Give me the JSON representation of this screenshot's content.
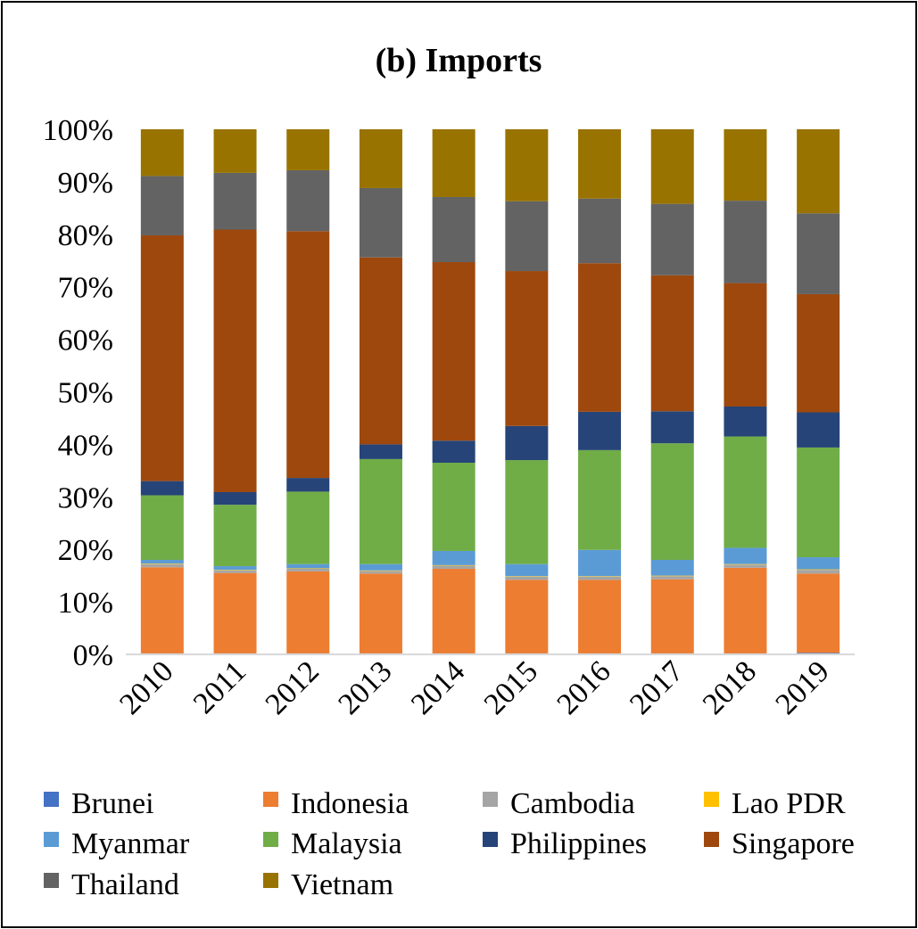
{
  "chart_data": {
    "type": "bar",
    "stacked": true,
    "normalized_percent": true,
    "title": "(b) Imports",
    "categories": [
      "2010",
      "2011",
      "2012",
      "2013",
      "2014",
      "2015",
      "2016",
      "2017",
      "2018",
      "2019"
    ],
    "y_ticks": [
      "0%",
      "10%",
      "20%",
      "30%",
      "40%",
      "50%",
      "60%",
      "70%",
      "80%",
      "90%",
      "100%"
    ],
    "ylim": [
      0,
      100
    ],
    "grid": false,
    "legend_position": "bottom",
    "series": [
      {
        "name": "Brunei",
        "color": "#4472C4",
        "values": [
          0.2,
          0.2,
          0.2,
          0.2,
          0.2,
          0.2,
          0.2,
          0.2,
          0.2,
          0.3
        ]
      },
      {
        "name": "Indonesia",
        "color": "#ED7D31",
        "values": [
          16.4,
          15.3,
          15.6,
          15.2,
          16.1,
          14.0,
          14.0,
          14.1,
          16.3,
          15.1
        ]
      },
      {
        "name": "Cambodia",
        "color": "#A5A5A5",
        "values": [
          0.6,
          0.5,
          0.5,
          0.5,
          0.6,
          0.6,
          0.6,
          0.6,
          0.6,
          0.7
        ]
      },
      {
        "name": "Lao PDR",
        "color": "#FFC000",
        "values": [
          0.1,
          0.1,
          0.1,
          0.1,
          0.1,
          0.1,
          0.1,
          0.1,
          0.1,
          0.1
        ]
      },
      {
        "name": "Myanmar",
        "color": "#5B9BD5",
        "values": [
          0.7,
          0.7,
          0.8,
          1.2,
          2.7,
          2.3,
          5.0,
          3.0,
          3.1,
          2.3
        ]
      },
      {
        "name": "Malaysia",
        "color": "#70AD47",
        "values": [
          12.3,
          11.7,
          13.8,
          20.0,
          16.8,
          19.8,
          19.0,
          22.2,
          21.2,
          20.9
        ]
      },
      {
        "name": "Philippines",
        "color": "#264478",
        "values": [
          2.7,
          2.4,
          2.6,
          2.8,
          4.2,
          6.5,
          7.3,
          6.1,
          5.7,
          6.7
        ]
      },
      {
        "name": "Singapore",
        "color": "#9E480E",
        "values": [
          46.8,
          50.0,
          47.0,
          35.6,
          34.0,
          29.5,
          28.3,
          25.9,
          23.5,
          22.5
        ]
      },
      {
        "name": "Thailand",
        "color": "#636363",
        "values": [
          11.3,
          10.8,
          11.6,
          13.2,
          12.4,
          13.3,
          12.3,
          13.6,
          15.7,
          15.4
        ]
      },
      {
        "name": "Vietnam",
        "color": "#997300",
        "values": [
          8.9,
          8.3,
          7.8,
          11.2,
          12.9,
          13.7,
          13.2,
          14.2,
          13.6,
          16.0
        ]
      }
    ]
  }
}
